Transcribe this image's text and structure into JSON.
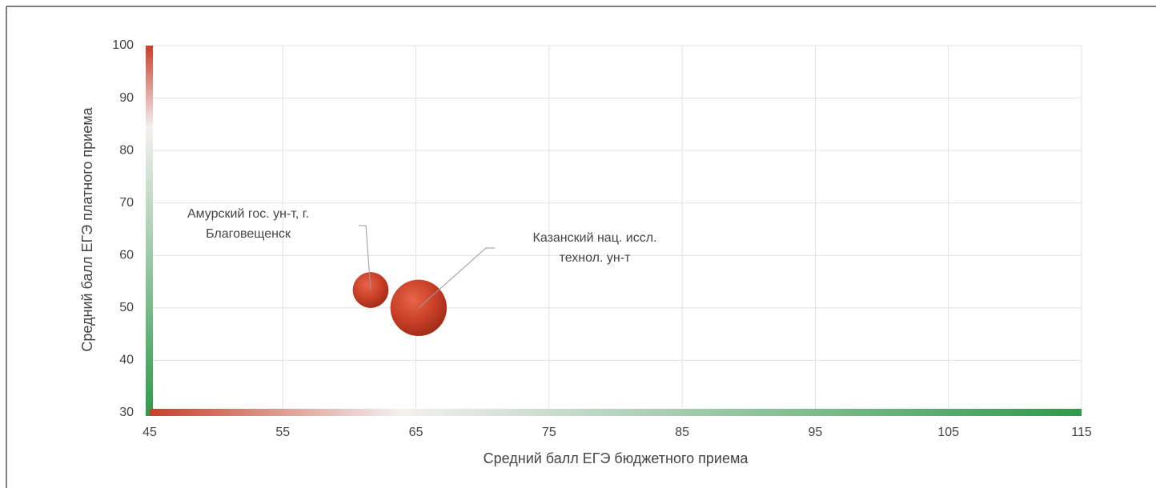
{
  "chart_data": {
    "type": "bubble",
    "xlabel": "Средний балл ЕГЭ бюджетного приема",
    "ylabel": "Средний балл ЕГЭ платного приема",
    "xlim": [
      45,
      115
    ],
    "xticks": [
      45,
      55,
      65,
      75,
      85,
      95,
      105,
      115
    ],
    "ylim": [
      30,
      100
    ],
    "yticks": [
      30,
      40,
      50,
      60,
      70,
      80,
      90,
      100
    ],
    "grid": true,
    "color": "#c8402a",
    "labels": [
      [
        "Амурский гос. ун-т, г.",
        "Благовещенск"
      ],
      [
        "Казанский нац. иссл.",
        "технол. ун-т"
      ]
    ],
    "x": [
      61.6,
      65.2
    ],
    "y": [
      53.4,
      50.0
    ],
    "size": [
      40,
      100
    ]
  }
}
